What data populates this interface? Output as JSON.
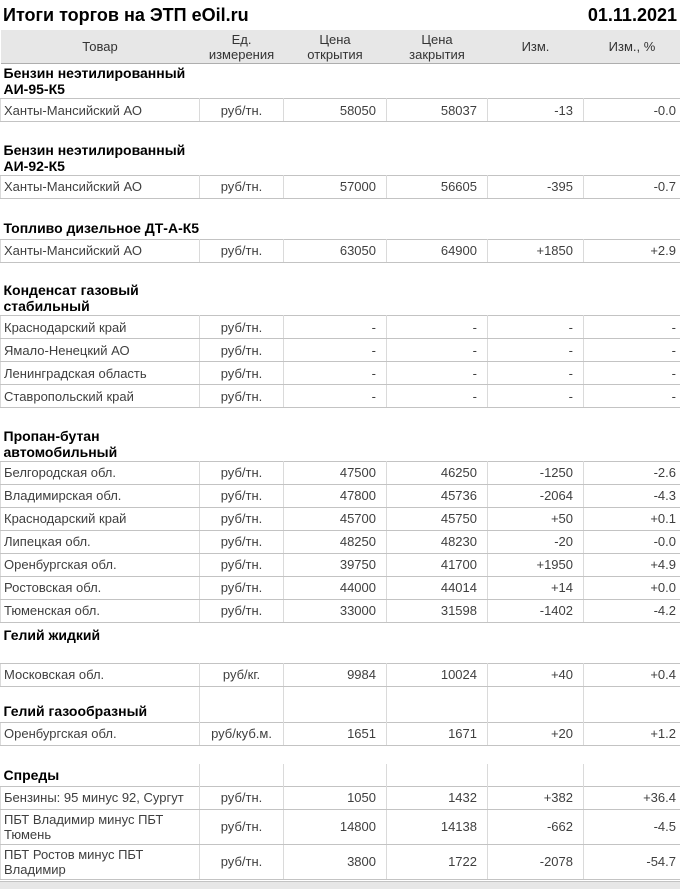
{
  "report": {
    "title": "Итоги торгов на ЭТП eOil.ru",
    "date": "01.11.2021"
  },
  "colors": {
    "positive": "#008000",
    "positive_bright": "#08a14a",
    "negative": "#c00000",
    "dash_change": "#008000",
    "header_bg": "#e7e7e7"
  },
  "table": {
    "columns": [
      "Товар",
      "Ед. измерения",
      "Цена открытия",
      "Цена закрытия",
      "Изм.",
      "Изм., %"
    ],
    "sections": [
      {
        "name": "Бензин неэтилированный АИ-95-К5",
        "gap_after": "plain",
        "rows": [
          {
            "product": "Ханты-Мансийский АО",
            "unit": "руб/тн.",
            "open": "58050",
            "close": "58037",
            "chg": "-13",
            "pct": "-0.0",
            "trend": "down"
          }
        ]
      },
      {
        "name": "Бензин неэтилированный АИ-92-К5",
        "gap_after": "plain",
        "rows": [
          {
            "product": "Ханты-Мансийский АО",
            "unit": "руб/тн.",
            "open": "57000",
            "close": "56605",
            "chg": "-395",
            "pct": "-0.7",
            "trend": "down"
          }
        ]
      },
      {
        "name": "Топливо дизельное ДТ-А-К5",
        "gap_after": "plain",
        "rows": [
          {
            "product": "Ханты-Мансийский АО",
            "unit": "руб/тн.",
            "open": "63050",
            "close": "64900",
            "chg": "+1850",
            "pct": "+2.9",
            "trend": "up"
          }
        ]
      },
      {
        "name": "Конденсат газовый стабильный",
        "gap_after": "plain",
        "rows": [
          {
            "product": "Краснодарский край",
            "unit": "руб/тн.",
            "open": "-",
            "close": "-",
            "chg": "-",
            "pct": "-",
            "trend": "dash"
          },
          {
            "product": "Ямало-Ненецкий АО",
            "unit": "руб/тн.",
            "open": "-",
            "close": "-",
            "chg": "-",
            "pct": "-",
            "trend": "dash"
          },
          {
            "product": "Ленинградская область",
            "unit": "руб/тн.",
            "open": "-",
            "close": "-",
            "chg": "-",
            "pct": "-",
            "trend": "dash"
          },
          {
            "product": "Ставропольский край",
            "unit": "руб/тн.",
            "open": "-",
            "close": "-",
            "chg": "-",
            "pct": "-",
            "trend": "dash"
          }
        ]
      },
      {
        "name": "Пропан-бутан автомобильный",
        "gap_after": "none",
        "rows": [
          {
            "product": "Белгородская обл.",
            "unit": "руб/тн.",
            "open": "47500",
            "close": "46250",
            "chg": "-1250",
            "pct": "-2.6",
            "trend": "down"
          },
          {
            "product": "Владимирская обл.",
            "unit": "руб/тн.",
            "open": "47800",
            "close": "45736",
            "chg": "-2064",
            "pct": "-4.3",
            "trend": "down"
          },
          {
            "product": "Краснодарский край",
            "unit": "руб/тн.",
            "open": "45700",
            "close": "45750",
            "chg": "+50",
            "pct": "+0.1",
            "trend": "up"
          },
          {
            "product": "Липецкая обл.",
            "unit": "руб/тн.",
            "open": "48250",
            "close": "48230",
            "chg": "-20",
            "pct": "-0.0",
            "trend": "down"
          },
          {
            "product": "Оренбургская обл.",
            "unit": "руб/тн.",
            "open": "39750",
            "close": "41700",
            "chg": "+1950",
            "pct": "+4.9",
            "trend": "up"
          },
          {
            "product": "Ростовская обл.",
            "unit": "руб/тн.",
            "open": "44000",
            "close": "44014",
            "chg": "+14",
            "pct": "+0.0",
            "trend": "up"
          },
          {
            "product": "Тюменская обл.",
            "unit": "руб/тн.",
            "open": "33000",
            "close": "31598",
            "chg": "-1402",
            "pct": "-4.2",
            "trend": "down"
          }
        ]
      },
      {
        "name": "Гелий жидкий",
        "header_tall": true,
        "gap_after": "bordered",
        "rows": [
          {
            "product": "Московская обл.",
            "unit": "руб/кг.",
            "open": "9984",
            "close": "10024",
            "chg": "+40",
            "pct": "+0.4",
            "trend": "up"
          }
        ]
      },
      {
        "name": "Гелий газообразный",
        "header_bordered": true,
        "gap_after": "plain",
        "rows": [
          {
            "product": "Оренбургская обл.",
            "unit": "руб/куб.м.",
            "open": "1651",
            "close": "1671",
            "chg": "+20",
            "pct": "+1.2",
            "trend": "up"
          }
        ]
      },
      {
        "name": "Спреды",
        "header_bordered": true,
        "gap_after": "none",
        "rows": [
          {
            "product": "Бензины: 95 минус 92, Сургут",
            "unit": "руб/тн.",
            "open": "1050",
            "close": "1432",
            "chg": "+382",
            "pct": "+36.4",
            "trend": "up",
            "pct_bright": true
          },
          {
            "product": "ПБТ Владимир минус ПБТ Тюмень",
            "unit": "руб/тн.",
            "open": "14800",
            "close": "14138",
            "chg": "-662",
            "pct": "-4.5",
            "trend": "down"
          },
          {
            "product": "ПБТ Ростов минус ПБТ Владимир",
            "unit": "руб/тн.",
            "open": "3800",
            "close": "1722",
            "chg": "-2078",
            "pct": "-54.7",
            "trend": "down"
          }
        ]
      }
    ]
  }
}
